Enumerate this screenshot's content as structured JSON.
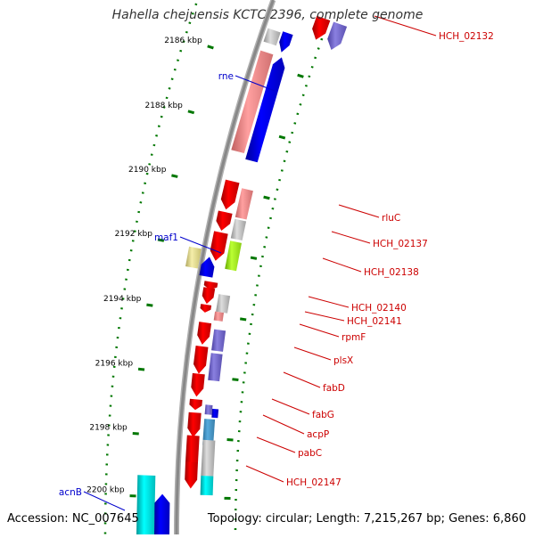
{
  "title": "Hahella chejuensis KCTC 2396, complete genome",
  "footer": {
    "accession": "Accession: NC_007645",
    "summary": "Topology: circular; Length: 7,215,267 bp; Genes: 6,860"
  },
  "colors": {
    "backbone": "#888888",
    "tick": "#007700",
    "label_red": "#cc0000",
    "label_blue": "#0000cc",
    "kbp_text": "#000000"
  },
  "ruler": [
    {
      "label": "2186 kbp"
    },
    {
      "label": "2188 kbp"
    },
    {
      "label": "2190 kbp"
    },
    {
      "label": "2192 kbp"
    },
    {
      "label": "2194 kbp"
    },
    {
      "label": "2196 kbp"
    },
    {
      "label": "2198 kbp"
    },
    {
      "label": "2200 kbp"
    }
  ],
  "genes_right": [
    {
      "name": "HCH_02132"
    },
    {
      "name": "rluC"
    },
    {
      "name": "HCH_02137"
    },
    {
      "name": "HCH_02138"
    },
    {
      "name": "HCH_02140"
    },
    {
      "name": "HCH_02141"
    },
    {
      "name": "rpmF"
    },
    {
      "name": "plsX"
    },
    {
      "name": "fabD"
    },
    {
      "name": "fabG"
    },
    {
      "name": "acpP"
    },
    {
      "name": "pabC"
    },
    {
      "name": "HCH_02147"
    }
  ],
  "genes_left": [
    {
      "name": "rne"
    },
    {
      "name": "maf1"
    },
    {
      "name": "acnB"
    }
  ]
}
